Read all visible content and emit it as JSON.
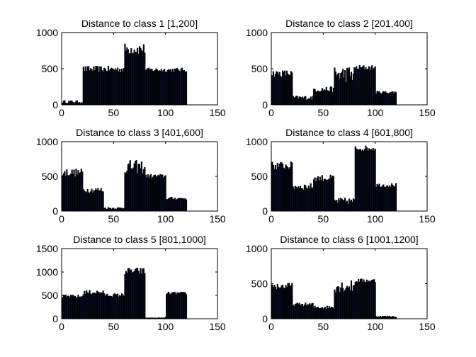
{
  "figure": {
    "background": "#ffffff",
    "bar_edge_color": "#000000",
    "bar_face_color": "#1f2d8a"
  },
  "chart_data": [
    {
      "type": "bar",
      "title": "Distance to class 1 [1,200]",
      "xlim": [
        0,
        150
      ],
      "ylim": [
        0,
        1000
      ],
      "xticks": [
        0,
        50,
        100,
        150
      ],
      "yticks": [
        0,
        500,
        1000
      ],
      "segments": [
        {
          "from": 1,
          "to": 20,
          "mean": 40,
          "jitter": 20
        },
        {
          "from": 21,
          "to": 60,
          "mean": 490,
          "jitter": 45
        },
        {
          "from": 61,
          "to": 80,
          "mean": 770,
          "jitter": 80
        },
        {
          "from": 81,
          "to": 120,
          "mean": 480,
          "jitter": 30
        }
      ]
    },
    {
      "type": "bar",
      "title": "Distance to class 2 [201,400]",
      "xlim": [
        0,
        150
      ],
      "ylim": [
        0,
        1000
      ],
      "xticks": [
        0,
        50,
        100,
        150
      ],
      "yticks": [
        0,
        500,
        1000
      ],
      "segments": [
        {
          "from": 1,
          "to": 20,
          "mean": 430,
          "jitter": 50
        },
        {
          "from": 21,
          "to": 40,
          "mean": 95,
          "jitter": 30
        },
        {
          "from": 41,
          "to": 60,
          "mean": 210,
          "jitter": 40
        },
        {
          "from": 61,
          "to": 80,
          "mean": 420,
          "jitter": 120
        },
        {
          "from": 81,
          "to": 100,
          "mean": 510,
          "jitter": 40
        },
        {
          "from": 101,
          "to": 120,
          "mean": 170,
          "jitter": 20
        }
      ]
    },
    {
      "type": "bar",
      "title": "Distance to class 3 [401,600]",
      "xlim": [
        0,
        150
      ],
      "ylim": [
        0,
        1000
      ],
      "xticks": [
        0,
        50,
        100,
        150
      ],
      "yticks": [
        0,
        500,
        1000
      ],
      "segments": [
        {
          "from": 1,
          "to": 20,
          "mean": 550,
          "jitter": 60
        },
        {
          "from": 21,
          "to": 40,
          "mean": 300,
          "jitter": 40
        },
        {
          "from": 41,
          "to": 60,
          "mean": 40,
          "jitter": 15
        },
        {
          "from": 61,
          "to": 80,
          "mean": 630,
          "jitter": 100
        },
        {
          "from": 81,
          "to": 100,
          "mean": 500,
          "jitter": 30
        },
        {
          "from": 101,
          "to": 120,
          "mean": 180,
          "jitter": 20
        }
      ]
    },
    {
      "type": "bar",
      "title": "Distance to class 4 [601,800]",
      "xlim": [
        0,
        150
      ],
      "ylim": [
        0,
        1000
      ],
      "xticks": [
        0,
        50,
        100,
        150
      ],
      "yticks": [
        0,
        500,
        1000
      ],
      "segments": [
        {
          "from": 1,
          "to": 20,
          "mean": 650,
          "jitter": 60
        },
        {
          "from": 21,
          "to": 40,
          "mean": 350,
          "jitter": 50
        },
        {
          "from": 41,
          "to": 60,
          "mean": 470,
          "jitter": 50
        },
        {
          "from": 61,
          "to": 80,
          "mean": 140,
          "jitter": 50
        },
        {
          "from": 81,
          "to": 100,
          "mean": 900,
          "jitter": 40
        },
        {
          "from": 101,
          "to": 120,
          "mean": 370,
          "jitter": 30
        }
      ]
    },
    {
      "type": "bar",
      "title": "Distance to class 5 [801,1000]",
      "xlim": [
        0,
        150
      ],
      "ylim": [
        0,
        1500
      ],
      "xticks": [
        0,
        50,
        100,
        150
      ],
      "yticks": [
        0,
        500,
        1000,
        1500
      ],
      "segments": [
        {
          "from": 1,
          "to": 20,
          "mean": 470,
          "jitter": 40
        },
        {
          "from": 21,
          "to": 40,
          "mean": 560,
          "jitter": 50
        },
        {
          "from": 41,
          "to": 60,
          "mean": 500,
          "jitter": 40
        },
        {
          "from": 61,
          "to": 80,
          "mean": 1010,
          "jitter": 80
        },
        {
          "from": 81,
          "to": 100,
          "mean": 15,
          "jitter": 5
        },
        {
          "from": 101,
          "to": 120,
          "mean": 540,
          "jitter": 30
        }
      ]
    },
    {
      "type": "bar",
      "title": "Distance to class 6 [1001,1200]",
      "xlim": [
        0,
        150
      ],
      "ylim": [
        0,
        1000
      ],
      "xticks": [
        0,
        50,
        100,
        150
      ],
      "yticks": [
        0,
        500,
        1000
      ],
      "segments": [
        {
          "from": 1,
          "to": 20,
          "mean": 460,
          "jitter": 50
        },
        {
          "from": 21,
          "to": 40,
          "mean": 200,
          "jitter": 25
        },
        {
          "from": 41,
          "to": 60,
          "mean": 160,
          "jitter": 25
        },
        {
          "from": 61,
          "to": 80,
          "mean": 460,
          "jitter": 90
        },
        {
          "from": 81,
          "to": 100,
          "mean": 540,
          "jitter": 30
        },
        {
          "from": 101,
          "to": 120,
          "mean": 30,
          "jitter": 10
        }
      ]
    }
  ]
}
